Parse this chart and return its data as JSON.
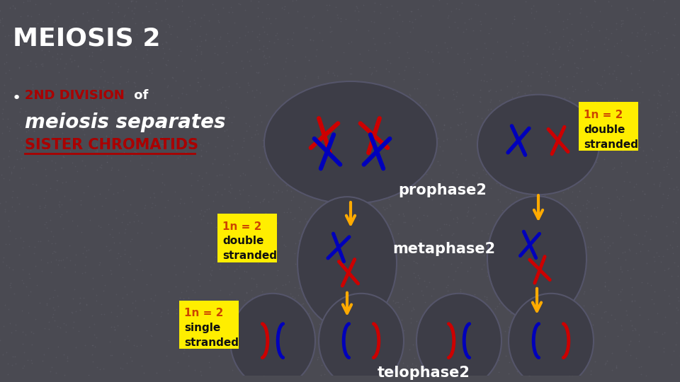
{
  "bg_color": "#4a4a52",
  "title": "MEIOSIS 2",
  "title_color": "#ffffff",
  "title_fontsize": 26,
  "bullet_label": "2ND DIVISION",
  "bullet_label_color": "#aa0000",
  "bullet_of": " of",
  "bullet_of_color": "#ffffff",
  "meiosis_separates": "meiosis separates",
  "meiosis_separates_color": "#ffffff",
  "sister_chromatids": "SISTER CHROMATIDS",
  "sister_chromatids_color": "#aa0000",
  "phase1": "prophase2",
  "phase2": "metaphase2",
  "phase3": "telophase2",
  "phase_color": "#ffffff",
  "cell_fill": "#3d3d47",
  "cell_edge": "#55556a",
  "red": "#cc0000",
  "blue": "#0000bb",
  "arrow_color": "#ffaa00",
  "label_bg": "#ffee00",
  "label_num_color": "#cc4400",
  "label_text_color": "#111111",
  "label1_text": [
    "1n = 2",
    "double",
    "stranded"
  ],
  "label2_text": [
    "1n = 2",
    "double",
    "stranded"
  ],
  "label3_text": [
    "1n = 2",
    "single",
    "stranded"
  ]
}
